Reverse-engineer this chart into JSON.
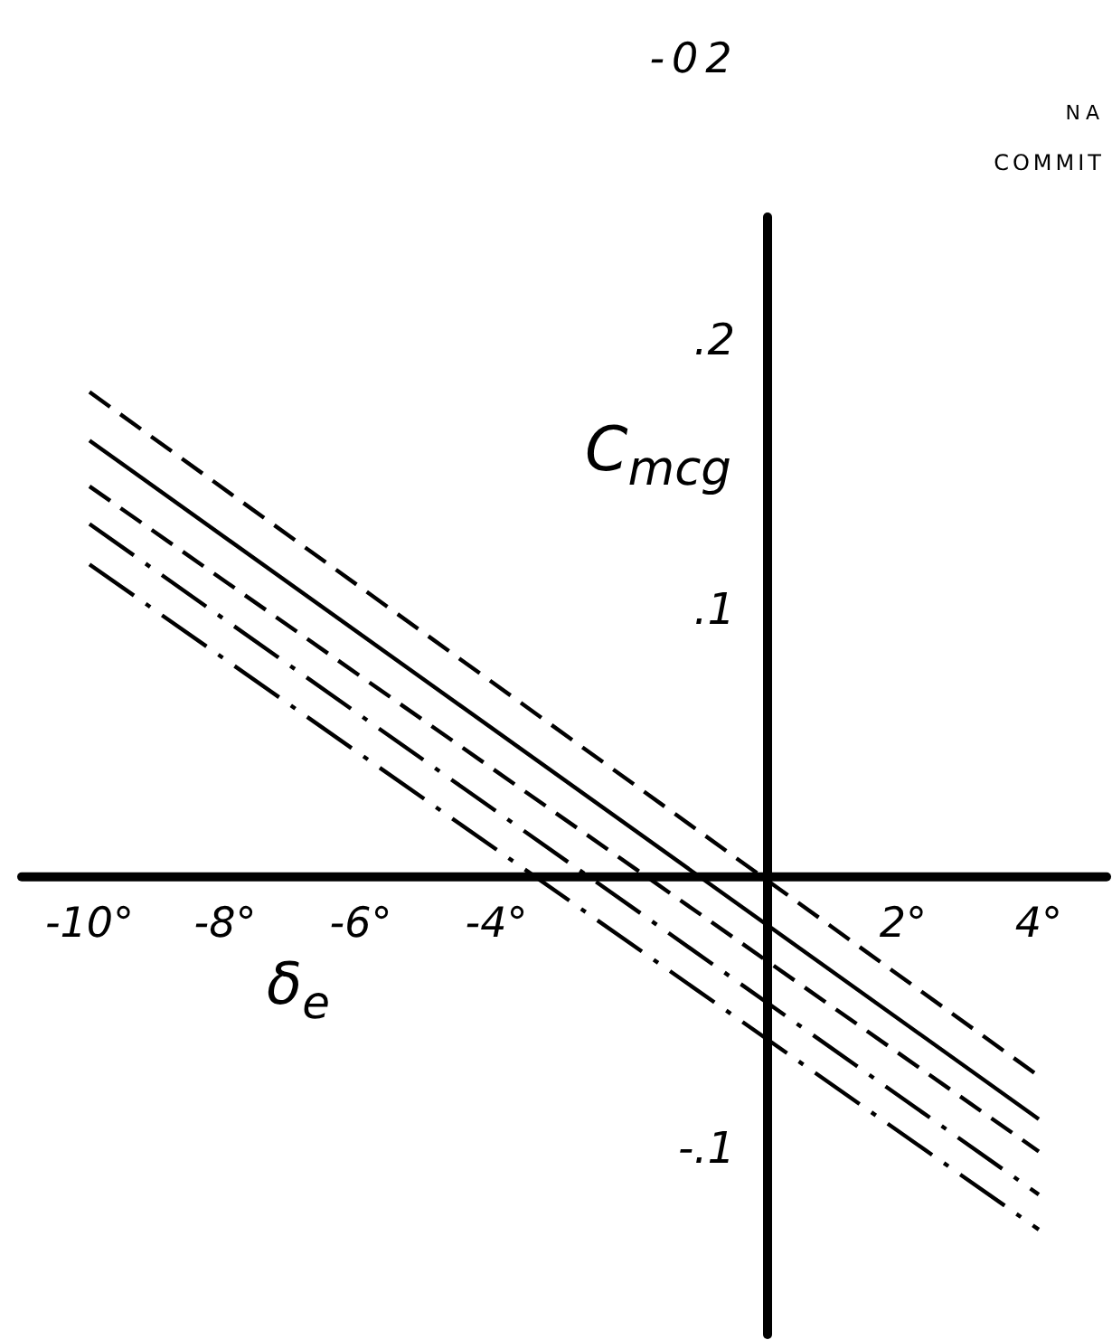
{
  "chart_data": {
    "type": "line",
    "xlabel": "δ$_{e}$",
    "ylabel": "C$_{mcg}$",
    "annotations": [
      "-02",
      "NA",
      "COMMIT"
    ],
    "x": [
      -10,
      4
    ],
    "xlim": [
      -11,
      5
    ],
    "ylim": [
      -0.17,
      0.245
    ],
    "xticks": [
      {
        "value": -10,
        "label": "-10°"
      },
      {
        "value": -8,
        "label": "-8°"
      },
      {
        "value": -6,
        "label": "-6°"
      },
      {
        "value": -4,
        "label": "-4°"
      },
      {
        "value": 2,
        "label": "2°"
      },
      {
        "value": 4,
        "label": "4°"
      }
    ],
    "yticks": [
      {
        "value": 0.2,
        "label": ".2"
      },
      {
        "value": 0.1,
        "label": ".1"
      },
      {
        "value": -0.1,
        "label": "-.1"
      }
    ],
    "series": [
      {
        "color": "#000000",
        "line_style": "dashed",
        "values": [
          0.18,
          -0.074
        ]
      },
      {
        "color": "#000000",
        "line_style": "solid",
        "values": [
          0.162,
          -0.09
        ]
      },
      {
        "color": "#000000",
        "line_style": "dashed",
        "values": [
          0.145,
          -0.102
        ]
      },
      {
        "color": "#000000",
        "line_style": "dashdot",
        "values": [
          0.131,
          -0.118
        ]
      },
      {
        "color": "#000000",
        "line_style": "dashdot",
        "values": [
          0.116,
          -0.131
        ]
      }
    ]
  }
}
